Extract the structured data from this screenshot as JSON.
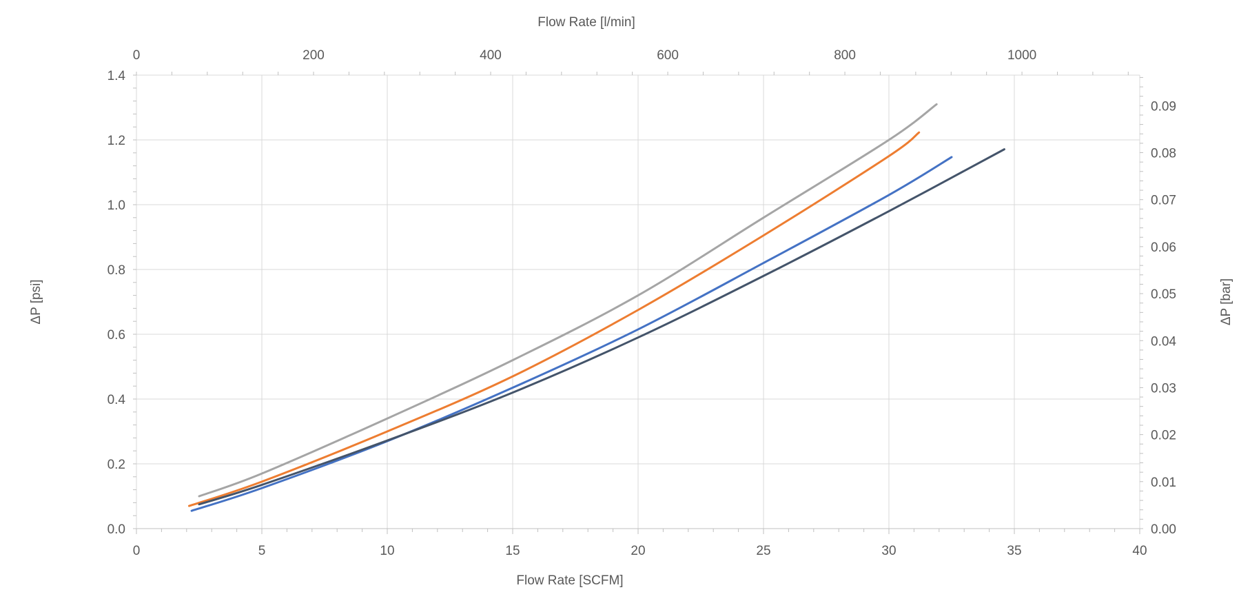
{
  "chart_data": {
    "type": "line",
    "title": "",
    "xlabel": "Flow Rate [SCFM]",
    "ylabel": "ΔP [psi]",
    "x2label": "Flow Rate [l/min]",
    "y2label": "ΔP [bar]",
    "xlim": [
      0,
      40
    ],
    "ylim": [
      0,
      1.4
    ],
    "x2lim": [
      0,
      1133
    ],
    "y2lim": [
      0,
      0.0965
    ],
    "xticks": [
      "0",
      "5",
      "10",
      "15",
      "20",
      "25",
      "30",
      "35",
      "40"
    ],
    "yticks": [
      "0.0",
      "0.2",
      "0.4",
      "0.6",
      "0.8",
      "1.0",
      "1.2",
      "1.4"
    ],
    "x2ticks": [
      "0",
      "200",
      "400",
      "600",
      "800",
      "1000"
    ],
    "y2ticks": [
      "0.00",
      "0.01",
      "0.02",
      "0.03",
      "0.04",
      "0.05",
      "0.06",
      "0.07",
      "0.08",
      "0.09"
    ],
    "grid": true,
    "legend": "none",
    "series": [
      {
        "color": "#a5a5a5",
        "x": [
          2.5,
          5,
          10,
          15,
          20,
          25,
          30,
          31.9
        ],
        "y": [
          0.1,
          0.17,
          0.34,
          0.52,
          0.72,
          0.96,
          1.2,
          1.31
        ]
      },
      {
        "color": "#ed7d31",
        "x": [
          2.1,
          5,
          10,
          15,
          20,
          25,
          30,
          31.2
        ],
        "y": [
          0.07,
          0.145,
          0.3,
          0.47,
          0.675,
          0.905,
          1.15,
          1.223
        ]
      },
      {
        "color": "#4472c4",
        "x": [
          2.2,
          5,
          10,
          15,
          20,
          25,
          30,
          32.5
        ],
        "y": [
          0.055,
          0.125,
          0.27,
          0.435,
          0.615,
          0.82,
          1.03,
          1.147
        ]
      },
      {
        "color": "#44546a",
        "x": [
          2.5,
          5,
          10,
          15,
          20,
          25,
          30,
          34.6
        ],
        "y": [
          0.075,
          0.135,
          0.272,
          0.42,
          0.59,
          0.78,
          0.98,
          1.171
        ]
      }
    ]
  }
}
